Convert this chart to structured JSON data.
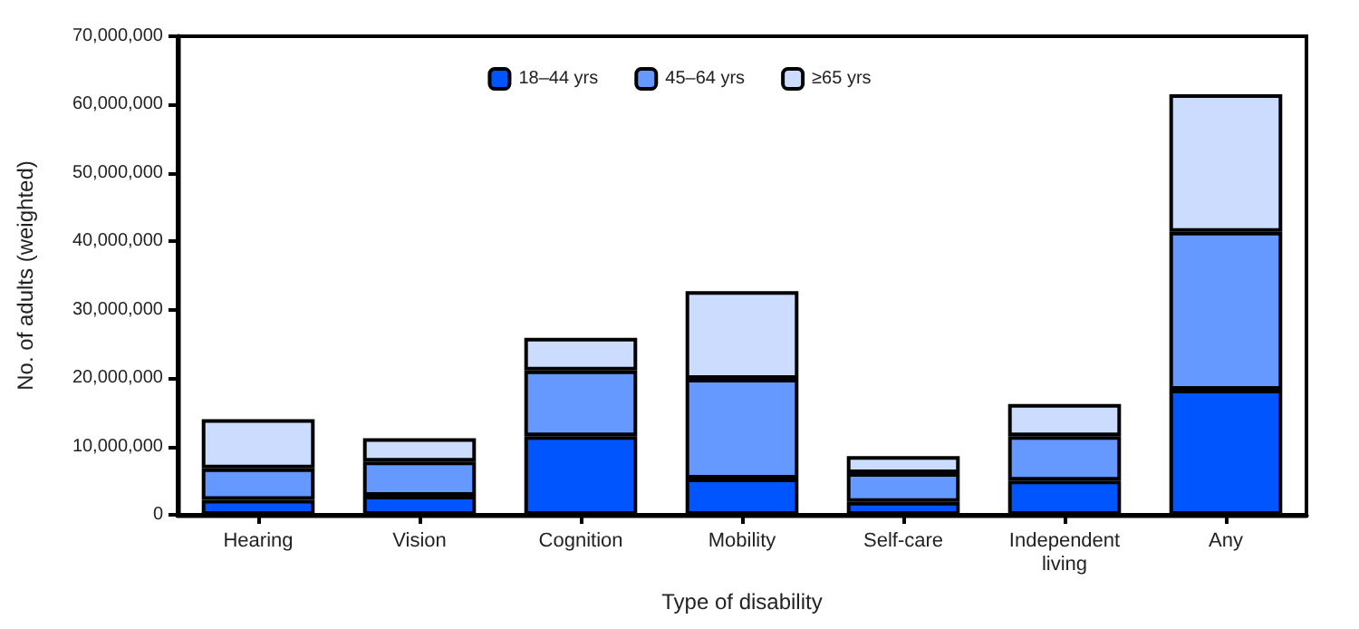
{
  "chart_data": {
    "type": "bar",
    "stacked": true,
    "xlabel": "Type of disability",
    "ylabel": "No. of adults (weighted)",
    "categories": [
      "Hearing",
      "Vision",
      "Cognition",
      "Mobility",
      "Self-care",
      "Independent\nliving",
      "Any"
    ],
    "series": [
      {
        "name": "18–44 yrs",
        "color": "#0055ff",
        "values": [
          2200000,
          2800000,
          11500000,
          5300000,
          1900000,
          5000000,
          18300000
        ]
      },
      {
        "name": "45–64 yrs",
        "color": "#6699ff",
        "values": [
          4600000,
          5000000,
          9600000,
          14600000,
          4200000,
          6500000,
          23100000
        ]
      },
      {
        "name": "≥65 yrs",
        "color": "#ccdcff",
        "values": [
          7200000,
          3400000,
          4800000,
          12800000,
          2500000,
          4700000,
          20100000
        ]
      }
    ],
    "ylim": [
      0,
      70000000
    ],
    "yticks": [
      0,
      {
        "value": 10000000,
        "label": "10,000,000"
      },
      {
        "value": 20000000,
        "label": "20,000,000"
      },
      {
        "value": 30000000,
        "label": "30,000,000"
      },
      {
        "value": 40000000,
        "label": "40,000,000"
      },
      {
        "value": 50000000,
        "label": "50,000,000"
      },
      {
        "value": 60000000,
        "label": "60,000,000"
      },
      {
        "value": 70000000,
        "label": "70,000,000"
      }
    ],
    "grid": false,
    "legend": "top"
  }
}
